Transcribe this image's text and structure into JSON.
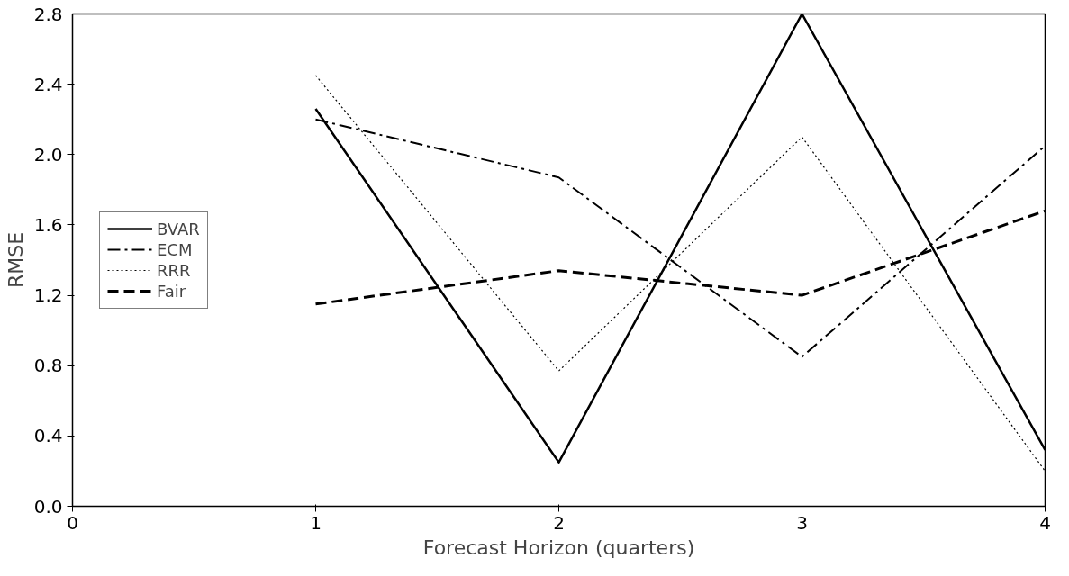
{
  "chart_data": {
    "type": "line",
    "xlabel": "Forecast Horizon (quarters)",
    "ylabel": "RMSE",
    "x": [
      1,
      2,
      3,
      4
    ],
    "xlim": [
      0,
      4
    ],
    "xticks": [
      0,
      1,
      2,
      3,
      4
    ],
    "ylim": [
      0,
      2.8
    ],
    "yticks": [
      {
        "value": 0,
        "label": "0.0"
      },
      {
        "value": 0.4,
        "label": "0.4"
      },
      {
        "value": 0.8,
        "label": "0.8"
      },
      {
        "value": 1.2,
        "label": "1.2"
      },
      {
        "value": 1.6,
        "label": "1.6"
      },
      {
        "value": 2.0,
        "label": "2.0"
      },
      {
        "value": 2.4,
        "label": "2.4"
      },
      {
        "value": 2.8,
        "label": "2.8"
      }
    ],
    "grid": false,
    "legend": "left",
    "marker": "none",
    "series": [
      {
        "name": "BVAR",
        "color": "#000000",
        "line_style": "solid",
        "values": [
          2.26,
          0.25,
          2.8,
          0.32
        ]
      },
      {
        "name": "ECM",
        "color": "#000000",
        "line_style": "dashdot",
        "values": [
          2.2,
          1.87,
          0.85,
          2.05
        ]
      },
      {
        "name": "RRR",
        "color": "#000000",
        "line_style": "dotted",
        "values": [
          2.45,
          0.77,
          2.1,
          0.2
        ]
      },
      {
        "name": "Fair",
        "color": "#000000",
        "line_style": "dashed",
        "values": [
          1.15,
          1.34,
          1.2,
          1.68
        ]
      }
    ]
  }
}
